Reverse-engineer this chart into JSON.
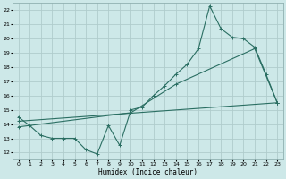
{
  "xlabel": "Humidex (Indice chaleur)",
  "bg_color": "#cde8e8",
  "grid_color": "#b0cccc",
  "line_color": "#2a6e62",
  "xlim": [
    -0.5,
    23.5
  ],
  "ylim": [
    11.5,
    22.5
  ],
  "xticks": [
    0,
    1,
    2,
    3,
    4,
    5,
    6,
    7,
    8,
    9,
    10,
    11,
    12,
    13,
    14,
    15,
    16,
    17,
    18,
    19,
    20,
    21,
    22,
    23
  ],
  "yticks": [
    12,
    13,
    14,
    15,
    16,
    17,
    18,
    19,
    20,
    21,
    22
  ],
  "series1_x": [
    0,
    1,
    2,
    3,
    4,
    5,
    6,
    7,
    8,
    9,
    10,
    11,
    12,
    13,
    14,
    15,
    16,
    17,
    18,
    19,
    20,
    21,
    22,
    23
  ],
  "series1_y": [
    14.5,
    13.9,
    13.2,
    13.0,
    13.0,
    13.0,
    12.2,
    11.9,
    13.9,
    12.5,
    15.0,
    15.2,
    16.0,
    16.7,
    17.5,
    18.2,
    19.3,
    22.3,
    20.7,
    20.1,
    20.0,
    19.4,
    17.5,
    15.5
  ],
  "series2_x": [
    0,
    23
  ],
  "series2_y": [
    14.2,
    15.5
  ],
  "series3_x": [
    0,
    10,
    14,
    21,
    23
  ],
  "series3_y": [
    13.8,
    14.8,
    16.8,
    19.3,
    15.5
  ],
  "marker_size": 2.5,
  "line_width": 0.8
}
